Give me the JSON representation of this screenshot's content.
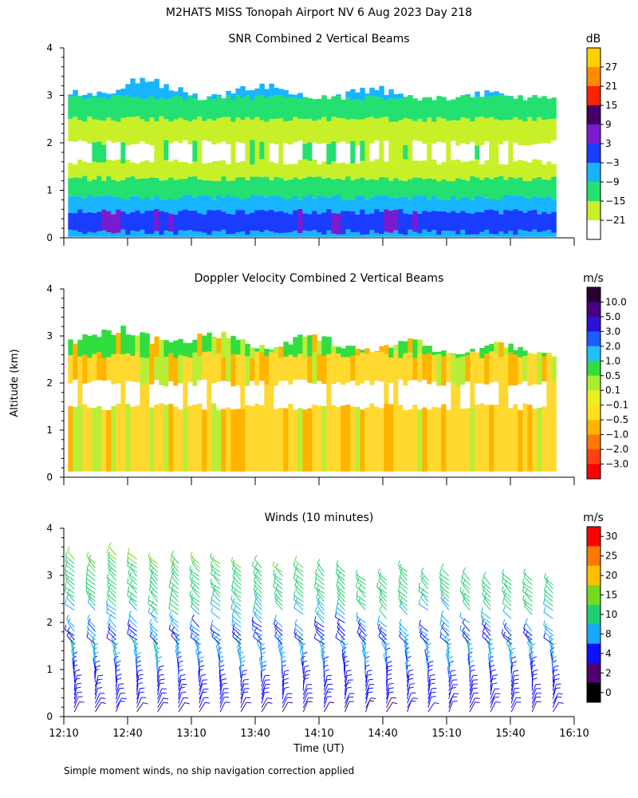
{
  "header": {
    "title": "M2HATS MISS Tonopah Airport NV   6 Aug 2023 Day 218",
    "ylabel": "Altitude (km)",
    "xlabel": "Time (UT)",
    "footnote": "Simple moment winds, no ship navigation correction applied"
  },
  "chart_data": [
    {
      "type": "heatmap",
      "title": "SNR Combined 2 Vertical Beams",
      "colorbar_unit": "dB",
      "colorbar_labels": [
        "27",
        "21",
        "15",
        "9",
        "3",
        "−3",
        "−9",
        "−15",
        "−21"
      ],
      "colorbar_colors": [
        "#ffd000",
        "#ff8c00",
        "#ff2000",
        "#440066",
        "#7a1bd0",
        "#1a3cff",
        "#18b4ff",
        "#23e070",
        "#c8f028",
        "#ffffff"
      ],
      "x_ticks": [
        "12:10",
        "12:40",
        "13:10",
        "13:40",
        "14:10",
        "14:40",
        "15:10",
        "15:40",
        "16:10"
      ],
      "xlim_hours": [
        12.1667,
        16.1667
      ],
      "data_xlim_hours": [
        12.2,
        16.0
      ],
      "y_ticks": [
        "0",
        "1",
        "2",
        "3",
        "4"
      ],
      "ylim_km": [
        0,
        4
      ],
      "layer_tops_km": [
        0.12,
        0.55,
        0.85,
        1.25,
        1.6,
        2.0,
        2.5,
        2.95,
        3.2
      ],
      "layer_classes": [
        "cyan",
        "blue",
        "cyan",
        "green",
        "lime",
        "white",
        "lime",
        "green",
        "cyan"
      ]
    },
    {
      "type": "heatmap",
      "title": "Doppler Velocity Combined 2 Vertical Beams",
      "colorbar_unit": "m/s",
      "colorbar_labels": [
        "10.0",
        "5.0",
        "3.0",
        "2.0",
        "1.0",
        "0.5",
        "0.1",
        "−0.1",
        "−0.5",
        "−1.0",
        "−2.0",
        "−3.0"
      ],
      "colorbar_colors": [
        "#2a0030",
        "#4b0080",
        "#2b10d8",
        "#1a5cff",
        "#20c0ff",
        "#32dd40",
        "#a8ee30",
        "#e8f020",
        "#ffe020",
        "#ffb400",
        "#ff7800",
        "#ff4010",
        "#ff0000"
      ],
      "x_ticks": [
        "12:10",
        "12:40",
        "13:10",
        "13:40",
        "14:10",
        "14:40",
        "15:10",
        "15:40",
        "16:10"
      ],
      "xlim_hours": [
        12.1667,
        16.1667
      ],
      "y_ticks": [
        "0",
        "1",
        "2",
        "3",
        "4"
      ],
      "ylim_km": [
        0,
        4
      ],
      "layer_tops_km": [
        0.12,
        1.5,
        2.0,
        2.6,
        3.05
      ],
      "layer_classes": [
        "lime",
        "yellow",
        "white",
        "yellow",
        "green"
      ]
    },
    {
      "type": "barbs",
      "title": "Winds (10 minutes)",
      "colorbar_unit": "m/s",
      "colorbar_labels": [
        "30",
        "25",
        "20",
        "15",
        "10",
        "8",
        "4",
        "2",
        "0"
      ],
      "colorbar_colors": [
        "#ff0000",
        "#ff7800",
        "#ffc000",
        "#78d820",
        "#20d070",
        "#18a8ff",
        "#1010ff",
        "#500070",
        "#000000"
      ],
      "x_ticks": [
        "12:10",
        "12:40",
        "13:10",
        "13:40",
        "14:10",
        "14:40",
        "15:10",
        "15:40",
        "16:10"
      ],
      "xlim_hours": [
        12.1667,
        16.1667
      ],
      "y_ticks": [
        "0",
        "1",
        "2",
        "3",
        "4"
      ],
      "ylim_km": [
        0,
        4
      ],
      "profile_interval_minutes": 10,
      "profile_count": 24,
      "barb_top_km": 3.4,
      "barb_bottom_km": 0.1
    }
  ]
}
